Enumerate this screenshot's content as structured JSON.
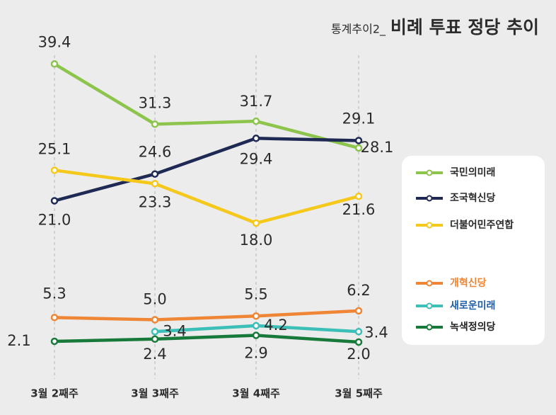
{
  "chart_data": {
    "type": "line",
    "title_prefix": "통계추이2_",
    "title": "비례 투표 정당 추이",
    "categories": [
      "3월 2째주",
      "3월 3째주",
      "3월 4째주",
      "3월 5째주"
    ],
    "ylim": [
      0,
      40
    ],
    "series": [
      {
        "name": "국민의미래",
        "color": "#8cc44c",
        "values": [
          39.4,
          31.3,
          31.7,
          28.1
        ],
        "value_labels": [
          "39.4",
          "31.3",
          "31.7",
          "28.1"
        ]
      },
      {
        "name": "조국혁신당",
        "color": "#1e2a54",
        "values": [
          21.0,
          24.6,
          29.4,
          29.1
        ],
        "value_labels": [
          "21.0",
          "24.6",
          "29.4",
          "29.1"
        ]
      },
      {
        "name": "더불어민주연합",
        "color": "#f5c81c",
        "values": [
          25.1,
          23.3,
          18.0,
          21.6
        ],
        "value_labels": [
          "25.1",
          "23.3",
          "18.0",
          "21.6"
        ]
      },
      {
        "name": "개혁신당",
        "color": "#ee8636",
        "values": [
          5.3,
          5.0,
          5.5,
          6.2
        ],
        "value_labels": [
          "5.3",
          "5.0",
          "5.5",
          "6.2"
        ]
      },
      {
        "name": "새로운미래",
        "color": "#3cbfb6",
        "values": [
          null,
          3.4,
          4.2,
          3.4
        ],
        "value_labels": [
          null,
          "3.4",
          "4.2",
          "3.4"
        ]
      },
      {
        "name": "녹색정의당",
        "color": "#177a3a",
        "values": [
          2.1,
          2.4,
          2.9,
          2.0
        ],
        "value_labels": [
          "2.1",
          "2.4",
          "2.9",
          "2.0"
        ]
      }
    ]
  }
}
